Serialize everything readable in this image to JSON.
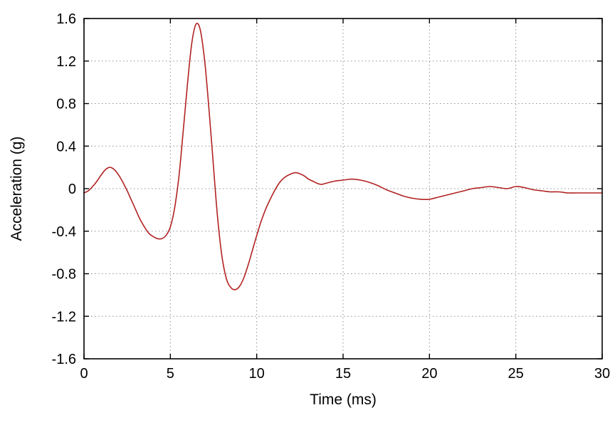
{
  "chart_data": {
    "type": "line",
    "title": "",
    "xlabel": "Time (ms)",
    "ylabel": "Acceleration (g)",
    "xlim": [
      0,
      30
    ],
    "ylim": [
      -1.6,
      1.6
    ],
    "xticks": [
      0,
      5,
      10,
      15,
      20,
      25,
      30
    ],
    "xtick_labels": [
      "0",
      "5",
      "10",
      "15",
      "20",
      "25",
      "30"
    ],
    "yticks": [
      -1.6,
      -1.2,
      -0.8,
      -0.4,
      0,
      0.4,
      0.8,
      1.2,
      1.6
    ],
    "ytick_labels": [
      "-1.6",
      "-1.2",
      "-0.8",
      "-0.4",
      "0",
      "0.4",
      "0.8",
      "1.2",
      "1.6"
    ],
    "grid": "dashed",
    "legend": "none",
    "line_color": "#b22222",
    "grid_color": "#8f8f8f",
    "frame_color": "#000000",
    "background": "#ffffff",
    "series": [
      {
        "name": "acceleration",
        "color": "#b22222",
        "x": [
          0,
          0.25,
          0.5,
          0.75,
          1,
          1.25,
          1.5,
          1.75,
          2,
          2.25,
          2.5,
          2.75,
          3,
          3.25,
          3.5,
          3.75,
          4,
          4.25,
          4.5,
          4.75,
          5,
          5.25,
          5.5,
          5.75,
          6,
          6.25,
          6.5,
          6.75,
          7,
          7.25,
          7.5,
          7.75,
          8,
          8.25,
          8.5,
          8.75,
          9,
          9.25,
          9.5,
          9.75,
          10,
          10.25,
          10.5,
          10.75,
          11,
          11.25,
          11.5,
          11.75,
          12,
          12.25,
          12.5,
          12.75,
          13,
          13.25,
          13.5,
          13.75,
          14,
          14.5,
          15,
          15.5,
          16,
          16.5,
          17,
          17.5,
          18,
          18.5,
          19,
          19.5,
          20,
          20.5,
          21,
          21.5,
          22,
          22.5,
          23,
          23.5,
          24,
          24.5,
          25,
          25.5,
          26,
          26.5,
          27,
          27.5,
          28,
          28.5,
          29,
          29.5,
          30
        ],
        "y": [
          -0.04,
          -0.02,
          0.02,
          0.07,
          0.13,
          0.18,
          0.2,
          0.18,
          0.13,
          0.06,
          -0.02,
          -0.11,
          -0.2,
          -0.29,
          -0.36,
          -0.42,
          -0.45,
          -0.47,
          -0.47,
          -0.44,
          -0.36,
          -0.18,
          0.12,
          0.55,
          1.0,
          1.38,
          1.55,
          1.48,
          1.18,
          0.72,
          0.2,
          -0.3,
          -0.65,
          -0.85,
          -0.93,
          -0.95,
          -0.92,
          -0.84,
          -0.72,
          -0.58,
          -0.44,
          -0.31,
          -0.2,
          -0.11,
          -0.03,
          0.04,
          0.09,
          0.12,
          0.14,
          0.15,
          0.14,
          0.12,
          0.09,
          0.07,
          0.05,
          0.04,
          0.05,
          0.07,
          0.08,
          0.09,
          0.08,
          0.06,
          0.03,
          -0.01,
          -0.04,
          -0.07,
          -0.09,
          -0.1,
          -0.1,
          -0.08,
          -0.06,
          -0.04,
          -0.02,
          0,
          0.01,
          0.02,
          0.01,
          0,
          0.02,
          0.01,
          -0.01,
          -0.02,
          -0.03,
          -0.03,
          -0.04,
          -0.04,
          -0.04,
          -0.04,
          -0.04
        ]
      }
    ]
  }
}
